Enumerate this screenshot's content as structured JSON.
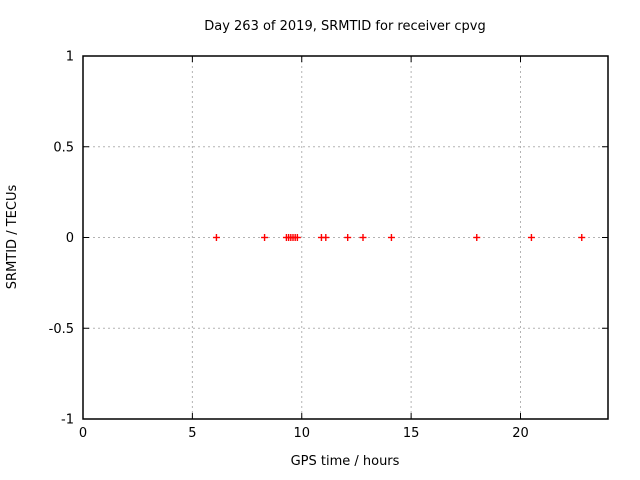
{
  "chart_data": {
    "type": "scatter",
    "title": "Day 263 of 2019, SRMTID for receiver cpvg",
    "xlabel": "GPS time / hours",
    "ylabel": "SRMTID / TECUs",
    "xlim": [
      0,
      24
    ],
    "ylim": [
      -1,
      1
    ],
    "xticks": [
      0,
      5,
      10,
      15,
      20
    ],
    "xtick_labels": [
      "0",
      "5",
      "10",
      "15",
      "20"
    ],
    "yticks": [
      1,
      0.5,
      0,
      -0.5,
      -1
    ],
    "ytick_labels": [
      "1",
      "0.5",
      "0",
      "-0.5",
      "-1"
    ],
    "grid": true,
    "legend": "none",
    "series": [
      {
        "name": "SRMTID",
        "marker": "plus",
        "color": "#ff0000",
        "x": [
          6.1,
          8.3,
          9.3,
          9.4,
          9.5,
          9.6,
          9.7,
          9.8,
          10.9,
          11.1,
          12.1,
          12.8,
          14.1,
          18.0,
          20.5,
          22.8
        ],
        "y": [
          0,
          0,
          0,
          0,
          0,
          0,
          0,
          0,
          0,
          0,
          0,
          0,
          0,
          0,
          0,
          0
        ]
      }
    ],
    "colors": {
      "background": "#ffffff",
      "border": "#000000",
      "grid": "#b3b3b3",
      "tick": "#000000",
      "text": "#000000",
      "marker": "#ff0000"
    }
  }
}
